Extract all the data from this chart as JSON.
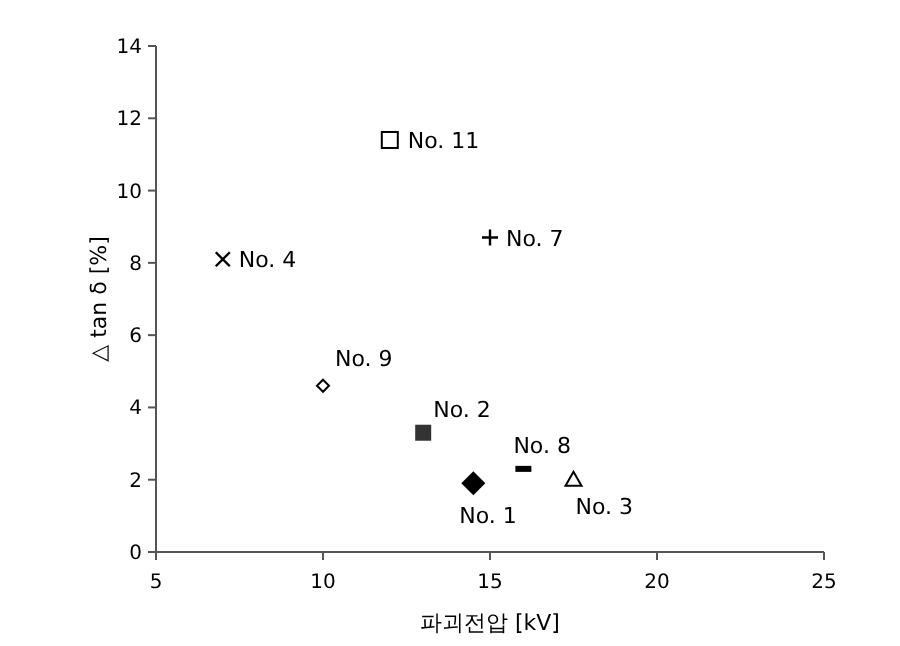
{
  "chart_data": {
    "type": "scatter",
    "xlabel": "파괴전압 [kV]",
    "ylabel": "△ tan δ [%]",
    "xlim": [
      5,
      25
    ],
    "xticks": [
      5,
      10,
      15,
      20,
      25
    ],
    "ylim": [
      0,
      14
    ],
    "yticks": [
      0,
      2,
      4,
      6,
      8,
      10,
      12,
      14
    ],
    "grid": false,
    "legend": false,
    "series": [
      {
        "name": "No. 1",
        "color": "#000000",
        "marker": "diamond",
        "x": [
          14.5
        ],
        "values": [
          1.9
        ]
      },
      {
        "name": "No. 2",
        "color": "#333333",
        "marker": "square",
        "x": [
          13
        ],
        "values": [
          3.3
        ]
      },
      {
        "name": "No. 3",
        "color": "#000000",
        "marker": "triangle-open",
        "x": [
          17.5
        ],
        "values": [
          2.0
        ]
      },
      {
        "name": "No. 4",
        "color": "#000000",
        "marker": "cross",
        "x": [
          7
        ],
        "values": [
          8.1
        ]
      },
      {
        "name": "No. 7",
        "color": "#000000",
        "marker": "plus",
        "x": [
          15
        ],
        "values": [
          8.7
        ]
      },
      {
        "name": "No. 8",
        "color": "#000000",
        "x": [
          16
        ],
        "values": [
          2.3
        ]
      },
      {
        "name": "No. 9",
        "color": "#000000",
        "marker": "diamond-open",
        "x": [
          10
        ],
        "values": [
          4.6
        ]
      },
      {
        "name": "No. 11",
        "color": "#000000",
        "marker": "square-open",
        "x": [
          12
        ],
        "values": [
          11.4
        ]
      }
    ]
  }
}
